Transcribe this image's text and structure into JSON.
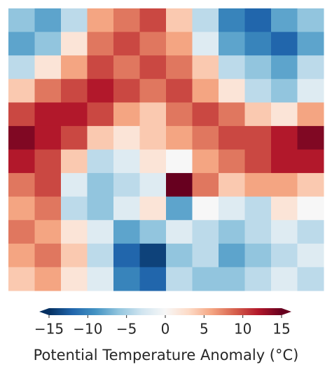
{
  "chart_data": {
    "type": "heatmap",
    "z": [
      [
        -6,
        -8,
        -4,
        6,
        8,
        10,
        4,
        -4,
        -10,
        -12,
        -8,
        -6
      ],
      [
        -8,
        -6,
        2,
        8,
        10,
        8,
        6,
        -2,
        -8,
        -10,
        -12,
        -8
      ],
      [
        -4,
        2,
        6,
        10,
        8,
        10,
        8,
        4,
        -4,
        -6,
        -8,
        -4
      ],
      [
        4,
        8,
        10,
        12,
        10,
        8,
        10,
        6,
        2,
        -4,
        -6,
        -2
      ],
      [
        10,
        12,
        12,
        10,
        6,
        4,
        8,
        10,
        8,
        4,
        2,
        6
      ],
      [
        14,
        12,
        10,
        4,
        2,
        4,
        6,
        8,
        10,
        10,
        12,
        14
      ],
      [
        12,
        10,
        4,
        -4,
        -2,
        2,
        0,
        6,
        8,
        10,
        12,
        12
      ],
      [
        8,
        10,
        -2,
        -6,
        -4,
        -2,
        16,
        8,
        4,
        6,
        6,
        4
      ],
      [
        6,
        8,
        -4,
        -6,
        -2,
        2,
        -8,
        0,
        -2,
        -4,
        2,
        0
      ],
      [
        8,
        6,
        2,
        -2,
        -8,
        -6,
        -2,
        -4,
        -6,
        -4,
        -2,
        -4
      ],
      [
        6,
        8,
        4,
        -4,
        -12,
        -14,
        -6,
        -4,
        -8,
        -6,
        -4,
        -2
      ],
      [
        4,
        6,
        2,
        -2,
        -10,
        -12,
        -4,
        -6,
        -6,
        -4,
        -2,
        -4
      ]
    ],
    "colorscale": [
      "#053061",
      "#2166ac",
      "#4393c3",
      "#92c5de",
      "#d1e5f0",
      "#f7f7f7",
      "#fddbc7",
      "#f4a582",
      "#d6604d",
      "#b2182b",
      "#67001f"
    ],
    "clim": [
      -15,
      15
    ],
    "colorbar_ticks": [
      {
        "value": -15,
        "label": "−15"
      },
      {
        "value": -10,
        "label": "−10"
      },
      {
        "value": -5,
        "label": "−5"
      },
      0,
      5,
      10,
      15
    ],
    "colorbar_label": "Potential Temperature Anomaly (°C)"
  }
}
